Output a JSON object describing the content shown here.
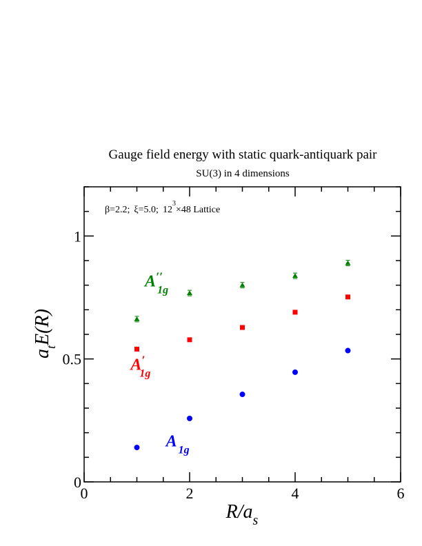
{
  "chart_data": {
    "type": "scatter",
    "title": "Gauge field energy with static quark-antiquark pair",
    "subtitle": "SU(3) in 4 dimensions",
    "annotation": {
      "beta": "β=2.2;",
      "xi": "ξ=5.0;",
      "lattice_a": "12",
      "lattice_exp": "3",
      "lattice_b": "×48 Lattice"
    },
    "xlabel": {
      "main": "R/a",
      "sub": "s"
    },
    "ylabel": {
      "a": "a",
      "sub": "t",
      "rest": "E(R)"
    },
    "xlim": [
      0,
      6
    ],
    "ylim": [
      0,
      1.2
    ],
    "xticks": [
      0,
      2,
      4,
      6
    ],
    "xtick_labels": [
      "0",
      "2",
      "4",
      "6"
    ],
    "yticks": [
      0,
      0.5,
      1
    ],
    "ytick_labels": [
      "0",
      "0.5",
      "1"
    ],
    "grid": false,
    "series": [
      {
        "name": "A1g''",
        "label_main": "A",
        "label_prime": "′′",
        "label_sub": "1g",
        "color": "#008000",
        "marker": "triangle",
        "x": [
          1,
          2,
          3,
          4,
          5
        ],
        "y": [
          0.662,
          0.768,
          0.8,
          0.838,
          0.89
        ]
      },
      {
        "name": "A1g'",
        "label_main": "A",
        "label_prime": "′",
        "label_sub": "1g",
        "color": "#ff0000",
        "marker": "square",
        "x": [
          1,
          2,
          3,
          4,
          5
        ],
        "y": [
          0.54,
          0.578,
          0.628,
          0.69,
          0.752
        ]
      },
      {
        "name": "A1g",
        "label_main": "A",
        "label_prime": "",
        "label_sub": "1g",
        "color": "#0000ff",
        "marker": "circle",
        "x": [
          1,
          2,
          3,
          4,
          5
        ],
        "y": [
          0.14,
          0.258,
          0.356,
          0.446,
          0.534
        ]
      }
    ]
  }
}
